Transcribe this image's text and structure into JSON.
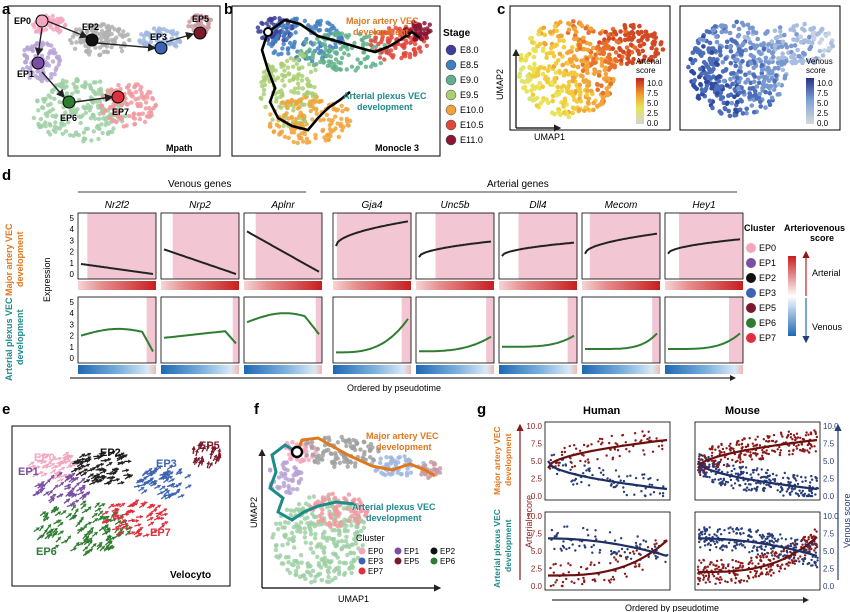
{
  "colors": {
    "orange": "#e0781e",
    "teal": "#1e8a8a",
    "darkred": "#8b1a1a",
    "navy": "#283c78",
    "pink_shade": "#f2c6d2"
  },
  "clusters": [
    {
      "name": "EP0",
      "color": "#f4a6bf"
    },
    {
      "name": "EP1",
      "color": "#7a4fa3"
    },
    {
      "name": "EP2",
      "color": "#111111"
    },
    {
      "name": "EP3",
      "color": "#3d63b2"
    },
    {
      "name": "EP5",
      "color": "#7a1a2a"
    },
    {
      "name": "EP6",
      "color": "#2e7d32"
    },
    {
      "name": "EP7",
      "color": "#e0303e"
    }
  ],
  "stages": [
    {
      "name": "E8.0",
      "color": "#3b3f9a"
    },
    {
      "name": "E8.5",
      "color": "#3f7fbf"
    },
    {
      "name": "E9.0",
      "color": "#5fb08a"
    },
    {
      "name": "E9.5",
      "color": "#a9cf73"
    },
    {
      "name": "E10.0",
      "color": "#f1a33a"
    },
    {
      "name": "E10.5",
      "color": "#e2453a"
    },
    {
      "name": "E11.0",
      "color": "#8b1534"
    }
  ],
  "panel_a": {
    "label": "a",
    "title": "Mpath",
    "nodes": [
      {
        "name": "EP0",
        "color": "#f4a6bf"
      },
      {
        "name": "EP2",
        "color": "#111111"
      },
      {
        "name": "EP3",
        "color": "#3d63b2"
      },
      {
        "name": "EP5",
        "color": "#7a1a2a"
      },
      {
        "name": "EP1",
        "color": "#7a4fa3"
      },
      {
        "name": "EP6",
        "color": "#2e7d32"
      },
      {
        "name": "EP7",
        "color": "#e0303e"
      }
    ]
  },
  "panel_b": {
    "label": "b",
    "title": "Monocle 3",
    "legend_title": "Stage",
    "major_label_1": "Major artery VEC",
    "major_label_2": "development",
    "plexus_label_1": "Arterial plexus VEC",
    "plexus_label_2": "development"
  },
  "panel_c": {
    "label": "c",
    "xlabel": "UMAP1",
    "ylabel": "UMAP2",
    "arterial_title": "Arterial\nscore",
    "arterial_title_1": "Arterial",
    "arterial_title_2": "score",
    "venous_title_1": "Venous",
    "venous_title_2": "score",
    "ticks": [
      "10.0",
      "7.5",
      "5.0",
      "2.5",
      "0.0"
    ]
  },
  "panel_d": {
    "label": "d",
    "venous_header": "Venous genes",
    "arterial_header": "Arterial genes",
    "genes": [
      "Nr2f2",
      "Nrp2",
      "Aplnr",
      "Gja4",
      "Unc5b",
      "Dll4",
      "Mecom",
      "Hey1"
    ],
    "row1_label_1": "Major artery VEC",
    "row1_label_2": "development",
    "row2_label_1": "Arterial plexus VEC",
    "row2_label_2": "development",
    "ylabel": "Expression",
    "yticks": [
      "5",
      "4",
      "3",
      "2",
      "1",
      "0"
    ],
    "xlabel": "Ordered by pseudotime",
    "legend_cluster_title": "Cluster",
    "legend_av_title_1": "Arteriovenous",
    "legend_av_title_2": "score",
    "legend_arterial": "Arterial",
    "legend_venous": "Venous"
  },
  "panel_e": {
    "label": "e",
    "title": "Velocyto",
    "labels": [
      "EP0",
      "EP2",
      "EP3",
      "EP5",
      "EP1",
      "EP6",
      "EP7"
    ]
  },
  "panel_f": {
    "label": "f",
    "xlabel": "UMAP1",
    "ylabel": "UMAP2",
    "major_label_1": "Major artery VEC",
    "major_label_2": "development",
    "plexus_label_1": "Arterial plexus VEC",
    "plexus_label_2": "development",
    "legend_title": "Cluster",
    "legend_items": [
      {
        "name": "EP0",
        "color": "#f4a6bf"
      },
      {
        "name": "EP1",
        "color": "#7a4fa3"
      },
      {
        "name": "EP2",
        "color": "#111111"
      },
      {
        "name": "EP3",
        "color": "#3d63b2"
      },
      {
        "name": "EP5",
        "color": "#7a1a2a"
      },
      {
        "name": "EP6",
        "color": "#2e7d32"
      },
      {
        "name": "EP7",
        "color": "#e0303e"
      }
    ]
  },
  "panel_g": {
    "label": "g",
    "human": "Human",
    "mouse": "Mouse",
    "row1_label_1": "Major artery VEC",
    "row1_label_2": "development",
    "row2_label_1": "Arterial plexus VEC",
    "row2_label_2": "development",
    "left_axis": "Arterial score",
    "right_axis": "Venous score",
    "ticks": [
      "10.0",
      "7.5",
      "5.0",
      "2.5",
      "0.0"
    ],
    "xlabel": "Ordered by pseudotime"
  }
}
